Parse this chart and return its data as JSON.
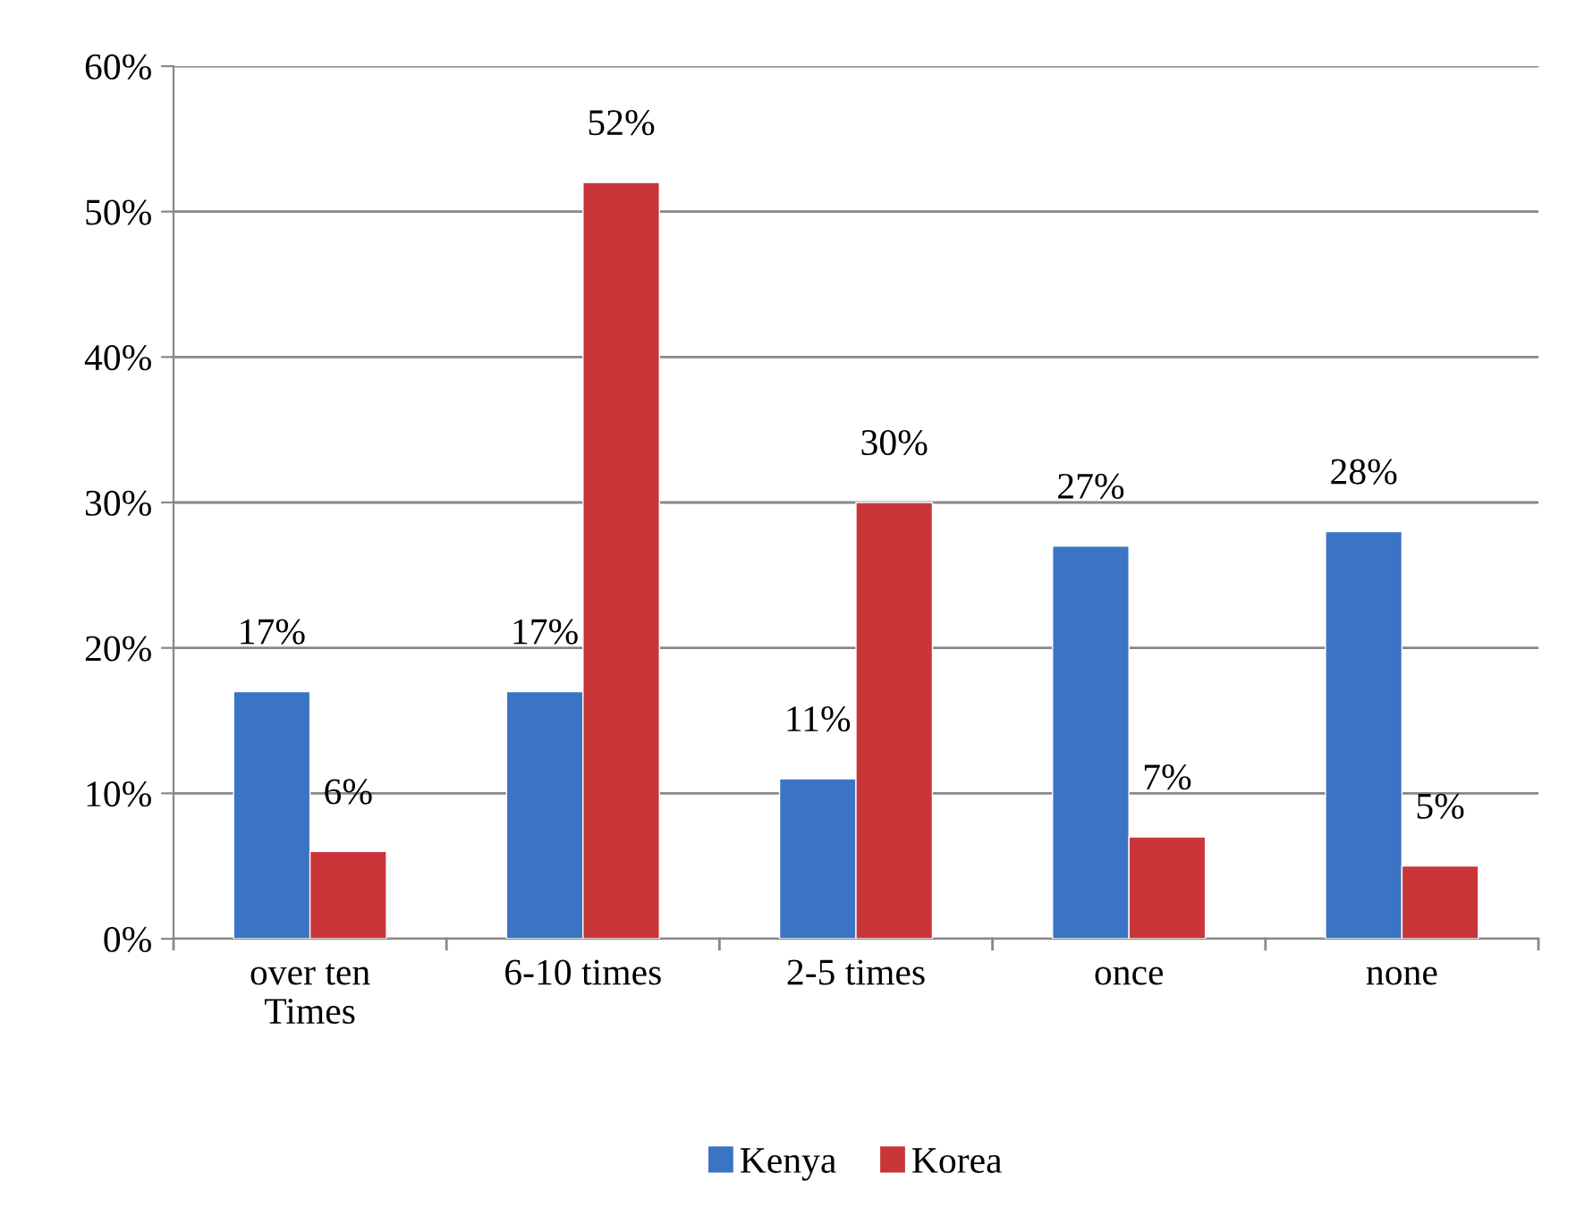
{
  "chart_data": {
    "type": "bar",
    "categories": [
      "over ten Times",
      "6-10 times",
      "2-5 times",
      "once",
      "none"
    ],
    "series": [
      {
        "name": "Kenya",
        "color": "#3b74c4",
        "values": [
          17,
          17,
          11,
          27,
          28
        ],
        "value_labels": [
          "17%",
          "17%",
          "11%",
          "27%",
          "28%"
        ]
      },
      {
        "name": "Korea",
        "color": "#c8363a",
        "values": [
          6,
          52,
          30,
          7,
          5
        ],
        "value_labels": [
          "6%",
          "52%",
          "30%",
          "7%",
          "5%"
        ]
      }
    ],
    "ylim": [
      0,
      60
    ],
    "yticks": [
      {
        "value": 0,
        "label": "0%"
      },
      {
        "value": 10,
        "label": "10%"
      },
      {
        "value": 20,
        "label": "20%"
      },
      {
        "value": 30,
        "label": "30%"
      },
      {
        "value": 40,
        "label": "40%"
      },
      {
        "value": 50,
        "label": "50%"
      },
      {
        "value": 60,
        "label": "60%"
      }
    ],
    "grid": "y",
    "legend": "bottom"
  }
}
